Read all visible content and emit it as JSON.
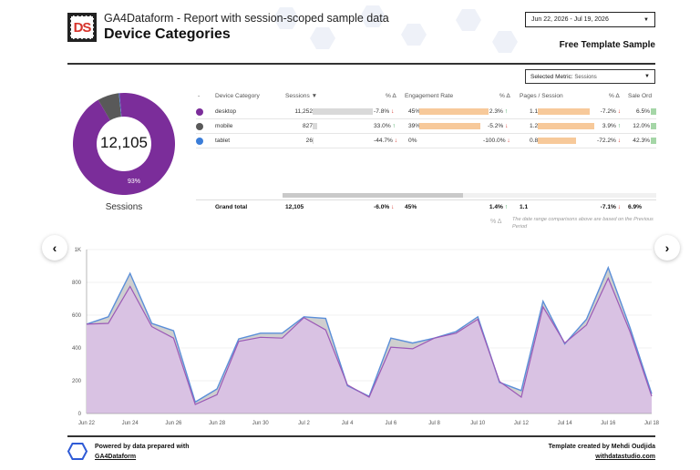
{
  "header": {
    "logo_text": "DS",
    "app_title": "GA4Dataform - Report with session-scoped sample data",
    "page_title": "Device Categories",
    "date_range": "Jun 22, 2026 - Jul 19, 2026",
    "template_label": "Free Template Sample"
  },
  "metric_selector": {
    "label": "Selected Metric:",
    "value": "Sessions"
  },
  "donut": {
    "total": "12,105",
    "label": "Sessions",
    "pct_label": "93%",
    "slices": [
      {
        "name": "desktop",
        "value": 11252,
        "color": "#7b2d9a"
      },
      {
        "name": "mobile",
        "value": 827,
        "color": "#595959"
      },
      {
        "name": "tablet",
        "value": 26,
        "color": "#3b7dd8"
      }
    ]
  },
  "table": {
    "headers": {
      "index": "-",
      "device_category": "Device Category",
      "sessions": "Sessions ▼",
      "pct_delta": "% Δ",
      "engagement_rate": "Engagement Rate",
      "pages_per_session": "Pages / Session",
      "sale_ord": "Sale Ord"
    },
    "rows": [
      {
        "color": "#7b2d9a",
        "category": "desktop",
        "sessions": "11,252",
        "sessions_frac": 1.0,
        "sessions_delta": "-7.8%",
        "sessions_dir": "down",
        "eng": "45%",
        "eng_frac": 0.99,
        "eng_delta": "2.3%",
        "eng_dir": "up",
        "pps": "1.1",
        "pps_frac": 0.92,
        "pps_delta": "-7.2%",
        "pps_dir": "down",
        "sale": "6.5%",
        "sale_frac": 1.0
      },
      {
        "color": "#595959",
        "category": "mobile",
        "sessions": "827",
        "sessions_frac": 0.073,
        "sessions_delta": "33.0%",
        "sessions_dir": "up",
        "eng": "39%",
        "eng_frac": 0.87,
        "eng_delta": "-5.2%",
        "eng_dir": "down",
        "pps": "1.2",
        "pps_frac": 1.0,
        "pps_delta": "3.9%",
        "pps_dir": "up",
        "sale": "12.0%",
        "sale_frac": 1.0
      },
      {
        "color": "#3b7dd8",
        "category": "tablet",
        "sessions": "26",
        "sessions_frac": 0.003,
        "sessions_delta": "-44.7%",
        "sessions_dir": "down",
        "eng": "0%",
        "eng_frac": 0.0,
        "eng_delta": "-100.0%",
        "eng_dir": "down",
        "pps": "0.8",
        "pps_frac": 0.67,
        "pps_delta": "-72.2%",
        "pps_dir": "down",
        "sale": "42.3%",
        "sale_frac": 1.0
      }
    ],
    "grand_total": {
      "label": "Grand total",
      "sessions": "12,105",
      "sessions_delta": "-6.0%",
      "sessions_dir": "down",
      "eng": "45%",
      "eng_delta": "1.4%",
      "eng_dir": "up",
      "pps": "1.1",
      "pps_delta": "-7.1%",
      "pps_dir": "down",
      "sale": "6.9%"
    },
    "footnote_delta": "% Δ",
    "footnote": "The date range comparisons above are based on the Previous Period"
  },
  "chart_data": {
    "type": "area",
    "x": [
      "Jun 22",
      "Jun 23",
      "Jun 24",
      "Jun 25",
      "Jun 26",
      "Jun 27",
      "Jun 28",
      "Jun 29",
      "Jun 30",
      "Jul 1",
      "Jul 2",
      "Jul 3",
      "Jul 4",
      "Jul 5",
      "Jul 6",
      "Jul 7",
      "Jul 8",
      "Jul 9",
      "Jul 10",
      "Jul 11",
      "Jul 12",
      "Jul 13",
      "Jul 14",
      "Jul 15",
      "Jul 16",
      "Jul 17",
      "Jul 18"
    ],
    "xticks": [
      "Jun 22",
      "Jun 24",
      "Jun 26",
      "Jun 28",
      "Jun 30",
      "Jul 2",
      "Jul 4",
      "Jul 6",
      "Jul 8",
      "Jul 10",
      "Jul 12",
      "Jul 14",
      "Jul 16",
      "Jul 18"
    ],
    "yticks": [
      "0",
      "200",
      "400",
      "600",
      "800",
      "1K"
    ],
    "ylim": [
      0,
      1000
    ],
    "series": [
      {
        "values": [
          545,
          590,
          855,
          550,
          505,
          70,
          150,
          455,
          490,
          490,
          590,
          580,
          170,
          105,
          460,
          430,
          460,
          500,
          590,
          190,
          140,
          685,
          425,
          575,
          890,
          525,
          120
        ],
        "color": "#5b8fd9"
      },
      {
        "values": [
          545,
          550,
          775,
          530,
          460,
          55,
          115,
          440,
          465,
          460,
          585,
          510,
          175,
          100,
          405,
          395,
          460,
          490,
          575,
          195,
          100,
          650,
          430,
          540,
          825,
          500,
          105
        ],
        "color": "#9b59b6"
      }
    ]
  },
  "footer": {
    "powered_line1": "Powered by data prepared with",
    "powered_link": "GA4Dataform",
    "credit_line1": "Template created by Mehdi Oudjida",
    "credit_link": "withdatastudio.com"
  },
  "nav": {
    "prev_icon": "‹",
    "next_icon": "›"
  }
}
